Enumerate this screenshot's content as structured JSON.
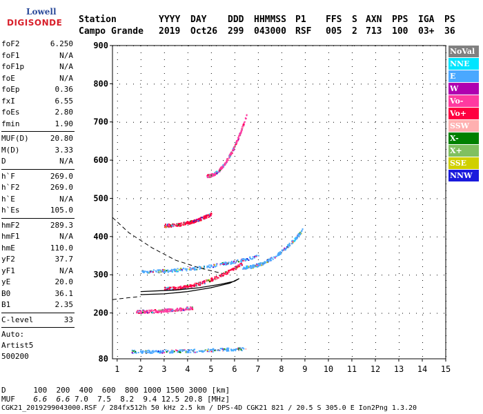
{
  "logo": {
    "line1": "Lowell",
    "line2": "DIGISONDE"
  },
  "header": {
    "labels": [
      "Station",
      "YYYY",
      "DAY",
      "DDD",
      "HHMMSS",
      "P1",
      "FFS",
      "S",
      "AXN",
      "PPS",
      "IGA",
      "PS"
    ],
    "values": [
      "Campo Grande",
      "2019",
      "Oct26",
      "299",
      "043000",
      "RSF",
      "005",
      "2",
      "713",
      "100",
      "03+",
      "36"
    ]
  },
  "params": {
    "group1": [
      {
        "name": "foF2",
        "value": "6.250"
      },
      {
        "name": "foF1",
        "value": "N/A"
      },
      {
        "name": "foF1p",
        "value": "N/A"
      },
      {
        "name": "foE",
        "value": "N/A"
      },
      {
        "name": "foEp",
        "value": "0.36"
      },
      {
        "name": "fxI",
        "value": "6.55"
      },
      {
        "name": "foEs",
        "value": "2.80"
      },
      {
        "name": "fmin",
        "value": "1.90"
      }
    ],
    "group2": [
      {
        "name": "MUF(D)",
        "value": "20.80"
      },
      {
        "name": "M(D)",
        "value": "3.33"
      },
      {
        "name": "D",
        "value": "N/A"
      }
    ],
    "group3": [
      {
        "name": "h`F",
        "value": "269.0"
      },
      {
        "name": "h`F2",
        "value": "269.0"
      },
      {
        "name": "h`E",
        "value": "N/A"
      },
      {
        "name": "h`Es",
        "value": "105.0"
      }
    ],
    "group4": [
      {
        "name": "hmF2",
        "value": "289.3"
      },
      {
        "name": "hmF1",
        "value": "N/A"
      },
      {
        "name": "hmE",
        "value": "110.0"
      },
      {
        "name": "yF2",
        "value": "37.7"
      },
      {
        "name": "yF1",
        "value": "N/A"
      },
      {
        "name": "yE",
        "value": "20.0"
      },
      {
        "name": "B0",
        "value": "36.1"
      },
      {
        "name": "B1",
        "value": "2.35"
      }
    ],
    "clevel": {
      "name": "C-level",
      "value": "33"
    },
    "auto": [
      "Auto:",
      "Artist5",
      "500200"
    ]
  },
  "legend": [
    {
      "label": "NoVal",
      "color": "#808080"
    },
    {
      "label": "NNE",
      "color": "#00e5ff"
    },
    {
      "label": "E",
      "color": "#4aa8ff"
    },
    {
      "label": "W",
      "color": "#b000b0"
    },
    {
      "label": "Vo-",
      "color": "#ff3aa0"
    },
    {
      "label": "Vo+",
      "color": "#ff0040"
    },
    {
      "label": "SSW",
      "color": "#ffb0b0"
    },
    {
      "label": "X-",
      "color": "#008000"
    },
    {
      "label": "X+",
      "color": "#80c060"
    },
    {
      "label": "SSE",
      "color": "#d0d000"
    },
    {
      "label": "NNW",
      "color": "#1a1adc"
    }
  ],
  "footer": {
    "d_label": "D",
    "d_values": "100  200  400  600  800 1000 1500 3000 [km]",
    "muf_label": "MUF",
    "muf_italic": "6.6  6.6",
    "muf_values": " 7.0  7.5  8.2  9.4 12.5 20.8 [MHz]",
    "file_line": "CGK21_2019299043000.RSF / 284fx512h 50 kHz 2.5 km / DPS-4D CGK21 821 / 20.5 S 305.0 E Ion2Png 1.3.20"
  },
  "chart_data": {
    "type": "scatter",
    "xlim": [
      0.8,
      15
    ],
    "ylim": [
      80,
      900
    ],
    "x_ticks": [
      1,
      2,
      3,
      4,
      5,
      6,
      7,
      8,
      9,
      10,
      11,
      12,
      13,
      14,
      15
    ],
    "y_ticks": [
      200,
      300,
      400,
      500,
      600,
      700,
      800,
      900
    ],
    "y_tick_min_label": "80",
    "grid": true,
    "traces": [
      {
        "name": "Es",
        "color": "#4aa8ff",
        "x_range": [
          1.6,
          6.5
        ],
        "h_range": [
          100,
          108
        ]
      },
      {
        "name": "Es-2",
        "color": "#ff3aa0",
        "x_range": [
          1.8,
          4.2
        ],
        "h_range": [
          205,
          215
        ]
      },
      {
        "name": "F-o",
        "color": "#ff0040",
        "x_range": [
          3.0,
          6.3
        ],
        "h_range": [
          265,
          330
        ]
      },
      {
        "name": "F-x",
        "color": "#4aa8ff",
        "x_range": [
          2.0,
          7.0
        ],
        "h_range": [
          310,
          350
        ]
      },
      {
        "name": "F-2hop",
        "color": "#ff0040",
        "x_range": [
          3.0,
          5.0
        ],
        "h_range": [
          430,
          460
        ]
      },
      {
        "name": "F-3hop",
        "color": "#ff3aa0",
        "x_range": [
          4.8,
          6.5
        ],
        "h_range": [
          560,
          720
        ]
      },
      {
        "name": "Spread-F",
        "color": "#4aa8ff",
        "x_range": [
          6.3,
          8.9
        ],
        "h_range": [
          320,
          420
        ]
      }
    ],
    "profile_solid": [
      [
        2.0,
        248
      ],
      [
        3,
        250
      ],
      [
        4,
        256
      ],
      [
        5,
        266
      ],
      [
        5.8,
        278
      ],
      [
        6.2,
        290
      ],
      [
        6.0,
        283
      ],
      [
        5.4,
        275
      ],
      [
        4.5,
        266
      ],
      [
        3.5,
        260
      ],
      [
        2.0,
        256
      ]
    ],
    "profile_dashed_upper": [
      [
        0.8,
        450
      ],
      [
        1.5,
        410
      ],
      [
        2.5,
        370
      ],
      [
        3.5,
        338
      ],
      [
        4.5,
        318
      ],
      [
        5.5,
        303
      ]
    ],
    "profile_dashed_lower": [
      [
        0.8,
        235
      ],
      [
        1.5,
        240
      ],
      [
        2.0,
        243
      ]
    ]
  }
}
